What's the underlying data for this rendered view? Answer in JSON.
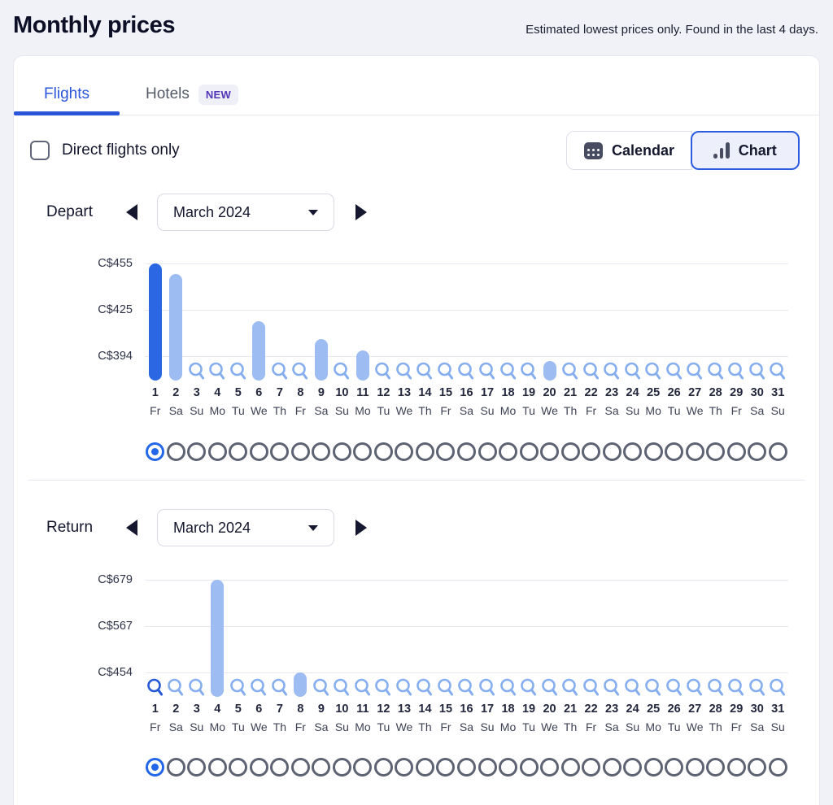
{
  "page": {
    "title": "Monthly prices",
    "subtitle": "Estimated lowest prices only. Found in the last 4 days."
  },
  "tabs": {
    "flights": {
      "label": "Flights",
      "active": true
    },
    "hotels": {
      "label": "Hotels",
      "badge": "NEW",
      "active": false
    }
  },
  "controls": {
    "direct_label": "Direct flights only",
    "direct_checked": false,
    "calendar_label": "Calendar",
    "chart_label": "Chart",
    "selected_view": "Chart"
  },
  "sections": {
    "depart": {
      "label": "Depart",
      "month": "March 2024",
      "selected_day": 1,
      "pager_count": 31,
      "pager_selected_index": 0
    },
    "return": {
      "label": "Return",
      "month": "March 2024",
      "selected_day": 1,
      "pager_count": 31,
      "pager_selected_index": 0
    }
  },
  "colors": {
    "accent_blue": "#2B56DC",
    "bar_light": "#9DBDF2",
    "bar_selected": "#2C67E3",
    "search_marker": "#86AEEF",
    "search_marker_selected": "#2458D6",
    "pager_gray": "#5D6372",
    "pager_selected": "#2367E8",
    "badge_purple": "#5335B8",
    "text_navy": "#12152B"
  },
  "chart_data": [
    {
      "id": "depart",
      "type": "bar",
      "title": "Depart lowest prices - March 2024",
      "currency": "C$",
      "yticks": [
        {
          "label": "C$455",
          "value": 455
        },
        {
          "label": "C$425",
          "value": 425
        },
        {
          "label": "C$394",
          "value": 394
        }
      ],
      "days": [
        1,
        2,
        3,
        4,
        5,
        6,
        7,
        8,
        9,
        10,
        11,
        12,
        13,
        14,
        15,
        16,
        17,
        18,
        19,
        20,
        21,
        22,
        23,
        24,
        25,
        26,
        27,
        28,
        29,
        30,
        31
      ],
      "weekdays": [
        "Fr",
        "Sa",
        "Su",
        "Mo",
        "Tu",
        "We",
        "Th",
        "Fr",
        "Sa",
        "Su",
        "Mo",
        "Tu",
        "We",
        "Th",
        "Fr",
        "Sa",
        "Su",
        "Mo",
        "Tu",
        "We",
        "Th",
        "Fr",
        "Sa",
        "Su",
        "Mo",
        "Tu",
        "We",
        "Th",
        "Fr",
        "Sa",
        "Su"
      ],
      "values": [
        455,
        448,
        null,
        null,
        null,
        417,
        null,
        null,
        405,
        null,
        398,
        null,
        null,
        null,
        null,
        null,
        null,
        null,
        null,
        391,
        null,
        null,
        null,
        null,
        null,
        null,
        null,
        null,
        null,
        null,
        null
      ],
      "no_data_marker": "search-icon",
      "selected_day": 1,
      "grid": true,
      "bar_color": "#9DBDF2",
      "bar_selected_color": "#2C67E3",
      "marker_color": "#86AEEF",
      "marker_selected_color": "#2458D6"
    },
    {
      "id": "return",
      "type": "bar",
      "title": "Return lowest prices - March 2024",
      "currency": "C$",
      "yticks": [
        {
          "label": "C$679",
          "value": 679
        },
        {
          "label": "C$567",
          "value": 567
        },
        {
          "label": "C$454",
          "value": 454
        }
      ],
      "days": [
        1,
        2,
        3,
        4,
        5,
        6,
        7,
        8,
        9,
        10,
        11,
        12,
        13,
        14,
        15,
        16,
        17,
        18,
        19,
        20,
        21,
        22,
        23,
        24,
        25,
        26,
        27,
        28,
        29,
        30,
        31
      ],
      "weekdays": [
        "Fr",
        "Sa",
        "Su",
        "Mo",
        "Tu",
        "We",
        "Th",
        "Fr",
        "Sa",
        "Su",
        "Mo",
        "Tu",
        "We",
        "Th",
        "Fr",
        "Sa",
        "Su",
        "Mo",
        "Tu",
        "We",
        "Th",
        "Fr",
        "Sa",
        "Su",
        "Mo",
        "Tu",
        "We",
        "Th",
        "Fr",
        "Sa",
        "Su"
      ],
      "values": [
        null,
        null,
        null,
        679,
        null,
        null,
        null,
        454,
        null,
        null,
        null,
        null,
        null,
        null,
        null,
        null,
        null,
        null,
        null,
        null,
        null,
        null,
        null,
        null,
        null,
        null,
        null,
        null,
        null,
        null,
        null
      ],
      "no_data_marker": "search-icon",
      "selected_day": 1,
      "grid": true,
      "bar_color": "#9DBDF2",
      "bar_selected_color": "#2C67E3",
      "marker_color": "#86AEEF",
      "marker_selected_color": "#2458D6"
    }
  ]
}
